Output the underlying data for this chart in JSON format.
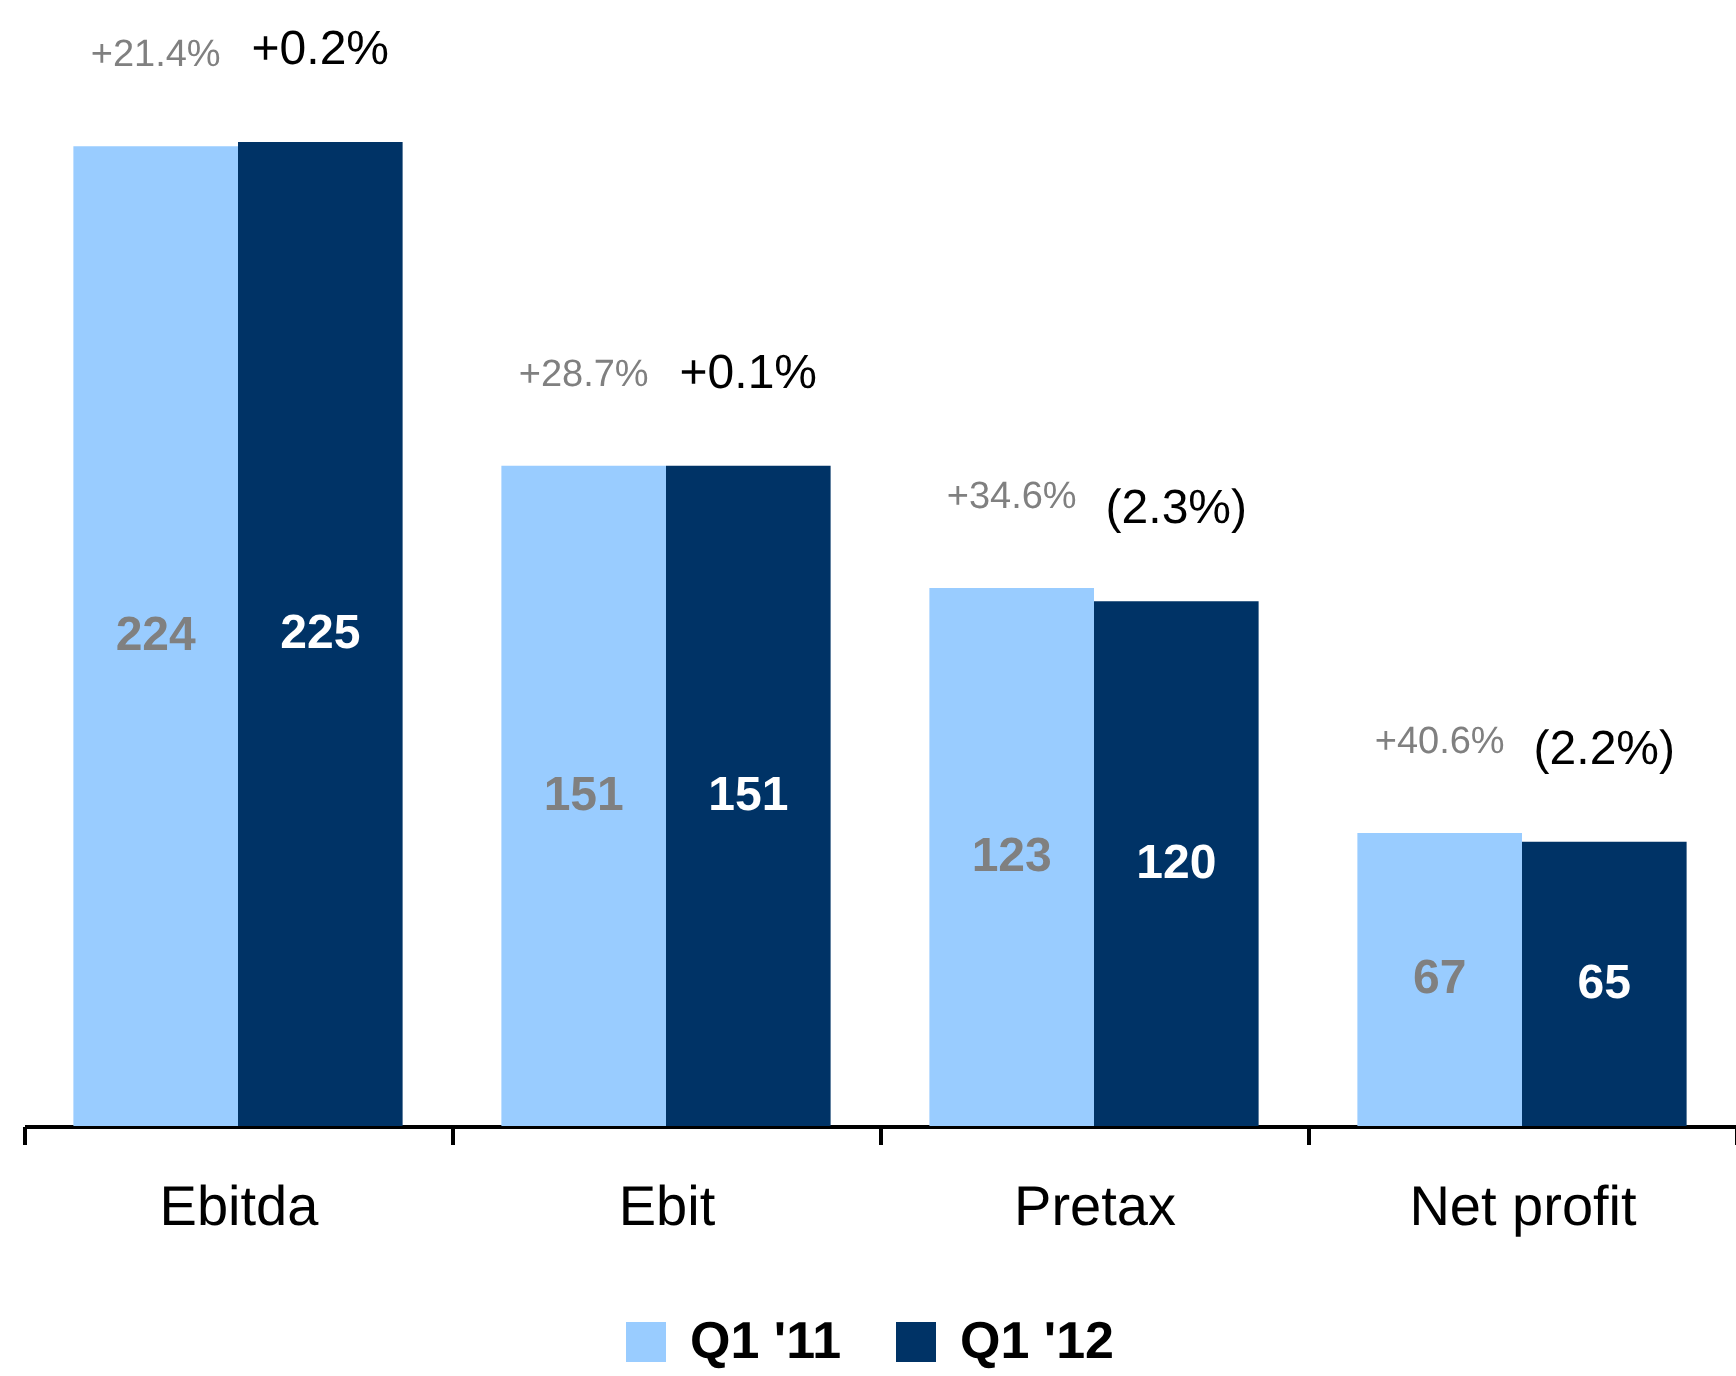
{
  "chart_data": {
    "type": "bar",
    "categories": [
      "Ebitda",
      "Ebit",
      "Pretax",
      "Net profit"
    ],
    "series": [
      {
        "name": "Q1 '11",
        "color": "#99ccff",
        "values": [
          224,
          151,
          123,
          67
        ]
      },
      {
        "name": "Q1 '12",
        "color": "#003366",
        "values": [
          225,
          151,
          120,
          65
        ]
      }
    ],
    "data_labels": true,
    "legend": "bottom",
    "tick_labels": "x",
    "annotations": [
      {
        "text": "+21.4%",
        "x": "Ebitda",
        "y": 224
      },
      {
        "text": "+0.2%",
        "x": "Ebitda",
        "y": 225
      },
      {
        "text": "+28.7%",
        "x": "Ebit",
        "y": 151
      },
      {
        "text": "+0.1%",
        "x": "Ebit",
        "y": 151
      },
      {
        "text": "+34.6%",
        "x": "Pretax",
        "y": 123
      },
      {
        "text": "(2.3%)",
        "x": "Pretax",
        "y": 120
      },
      {
        "text": "+40.6%",
        "x": "Net profit",
        "y": 67
      },
      {
        "text": "(2.2%)",
        "x": "Net profit",
        "y": 65
      }
    ]
  }
}
